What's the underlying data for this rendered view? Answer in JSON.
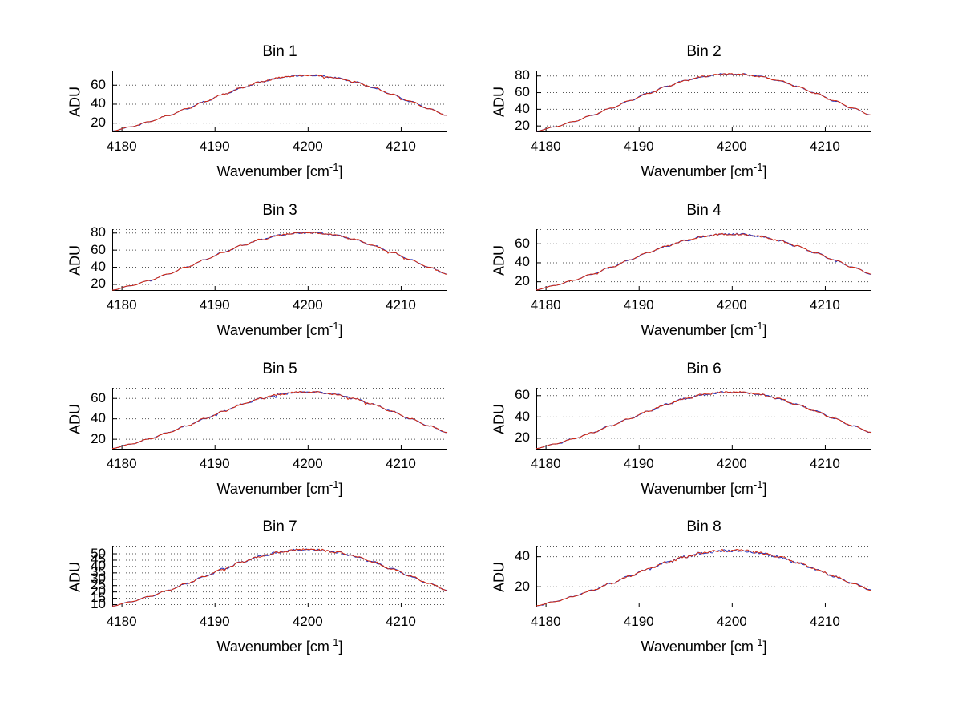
{
  "figure": {
    "background": "#ffffff",
    "ylabel": "ADU",
    "xlabel": {
      "prefix": "Wavenumber [cm",
      "sup": "-1",
      "suffix": "]"
    },
    "line_color": "#d42a10",
    "under_line_color": "#1c2fbf",
    "grid_color": "#555555",
    "axis_color": "#000000"
  },
  "chart_data": [
    {
      "type": "line",
      "title": "Bin 1",
      "x": [
        4179,
        4181,
        4183,
        4185,
        4187,
        4189,
        4191,
        4193,
        4195,
        4197,
        4199,
        4201,
        4203,
        4205,
        4207,
        4209,
        4211,
        4213,
        4215
      ],
      "values": [
        11.3,
        15.7,
        21.2,
        27.6,
        34.8,
        42.5,
        50.1,
        57.2,
        63.1,
        67.4,
        69.7,
        69.7,
        67.4,
        63.1,
        57.2,
        50.1,
        42.5,
        34.8,
        27.6
      ],
      "peak": 70,
      "xticks": [
        4180,
        4190,
        4200,
        4210
      ],
      "yticks": [
        20,
        40,
        60
      ],
      "xlim": [
        4179,
        4215
      ],
      "ylim": [
        10,
        75
      ],
      "xlabel": "Wavenumber [cm-1]",
      "ylabel": "ADU",
      "grid": true
    },
    {
      "type": "line",
      "title": "Bin 2",
      "x": [
        4179,
        4181,
        4183,
        4185,
        4187,
        4189,
        4191,
        4193,
        4195,
        4197,
        4199,
        4201,
        4203,
        4205,
        4207,
        4209,
        4211,
        4213,
        4215
      ],
      "values": [
        13.3,
        18.4,
        24.8,
        32.4,
        40.8,
        49.7,
        58.7,
        67.0,
        74.0,
        79.0,
        81.7,
        81.7,
        79.0,
        74.0,
        67.0,
        58.7,
        49.7,
        40.8,
        32.4
      ],
      "peak": 82,
      "xticks": [
        4180,
        4190,
        4200,
        4210
      ],
      "yticks": [
        20,
        40,
        60,
        80
      ],
      "xlim": [
        4179,
        4215
      ],
      "ylim": [
        12,
        86
      ],
      "xlabel": "Wavenumber [cm-1]",
      "ylabel": "ADU",
      "grid": true
    },
    {
      "type": "line",
      "title": "Bin 3",
      "x": [
        4179,
        4181,
        4183,
        4185,
        4187,
        4189,
        4191,
        4193,
        4195,
        4197,
        4199,
        4201,
        4203,
        4205,
        4207,
        4209,
        4211,
        4213,
        4215
      ],
      "values": [
        12.9,
        18.0,
        24.2,
        31.6,
        39.8,
        48.5,
        57.2,
        65.3,
        72.1,
        77.1,
        79.7,
        79.7,
        77.1,
        72.1,
        65.3,
        57.2,
        48.5,
        39.8,
        31.6
      ],
      "peak": 80,
      "xticks": [
        4180,
        4190,
        4200,
        4210
      ],
      "yticks": [
        20,
        40,
        60,
        80
      ],
      "xlim": [
        4179,
        4215
      ],
      "ylim": [
        12,
        84
      ],
      "xlabel": "Wavenumber [cm-1]",
      "ylabel": "ADU",
      "grid": true
    },
    {
      "type": "line",
      "title": "Bin 4",
      "x": [
        4179,
        4181,
        4183,
        4185,
        4187,
        4189,
        4191,
        4193,
        4195,
        4197,
        4199,
        4201,
        4203,
        4205,
        4207,
        4209,
        4211,
        4213,
        4215
      ],
      "values": [
        11.3,
        15.7,
        21.2,
        27.6,
        34.8,
        42.5,
        50.1,
        57.2,
        63.1,
        67.4,
        69.7,
        69.7,
        67.4,
        63.1,
        57.2,
        50.1,
        42.5,
        34.8,
        27.6
      ],
      "peak": 70,
      "xticks": [
        4180,
        4190,
        4200,
        4210
      ],
      "yticks": [
        20,
        40,
        60
      ],
      "xlim": [
        4179,
        4215
      ],
      "ylim": [
        10,
        75
      ],
      "xlabel": "Wavenumber [cm-1]",
      "ylabel": "ADU",
      "grid": true
    },
    {
      "type": "line",
      "title": "Bin 5",
      "x": [
        4179,
        4181,
        4183,
        4185,
        4187,
        4189,
        4191,
        4193,
        4195,
        4197,
        4199,
        4201,
        4203,
        4205,
        4207,
        4209,
        4211,
        4213,
        4215
      ],
      "values": [
        10.7,
        14.8,
        20.0,
        26.1,
        32.8,
        40.0,
        47.2,
        53.9,
        59.5,
        63.6,
        65.7,
        65.7,
        63.6,
        59.5,
        53.9,
        47.2,
        40.0,
        32.8,
        26.1
      ],
      "peak": 66,
      "xticks": [
        4180,
        4190,
        4200,
        4210
      ],
      "yticks": [
        20,
        40,
        60
      ],
      "xlim": [
        4179,
        4215
      ],
      "ylim": [
        9.5,
        70
      ],
      "xlabel": "Wavenumber [cm-1]",
      "ylabel": "ADU",
      "grid": true
    },
    {
      "type": "line",
      "title": "Bin 6",
      "x": [
        4179,
        4181,
        4183,
        4185,
        4187,
        4189,
        4191,
        4193,
        4195,
        4197,
        4199,
        4201,
        4203,
        4205,
        4207,
        4209,
        4211,
        4213,
        4215
      ],
      "values": [
        10.2,
        14.2,
        19.1,
        24.9,
        31.3,
        38.2,
        45.1,
        51.5,
        56.8,
        60.7,
        62.7,
        62.7,
        60.7,
        56.8,
        51.5,
        45.1,
        38.2,
        31.3,
        24.9
      ],
      "peak": 63,
      "xticks": [
        4180,
        4190,
        4200,
        4210
      ],
      "yticks": [
        20,
        40,
        60
      ],
      "xlim": [
        4179,
        4215
      ],
      "ylim": [
        9,
        67
      ],
      "xlabel": "Wavenumber [cm-1]",
      "ylabel": "ADU",
      "grid": true
    },
    {
      "type": "line",
      "title": "Bin 7",
      "x": [
        4179,
        4181,
        4183,
        4185,
        4187,
        4189,
        4191,
        4193,
        4195,
        4197,
        4199,
        4201,
        4203,
        4205,
        4207,
        4209,
        4211,
        4213,
        4215
      ],
      "values": [
        8.6,
        11.9,
        16.1,
        20.9,
        26.4,
        32.1,
        37.9,
        43.3,
        47.8,
        51.1,
        52.8,
        52.8,
        51.1,
        47.8,
        43.3,
        37.9,
        32.1,
        26.4,
        20.9
      ],
      "peak": 53,
      "xticks": [
        4180,
        4190,
        4200,
        4210
      ],
      "yticks": [
        10,
        15,
        20,
        25,
        30,
        35,
        40,
        45,
        50
      ],
      "xlim": [
        4179,
        4215
      ],
      "ylim": [
        7.5,
        56
      ],
      "xlabel": "Wavenumber [cm-1]",
      "ylabel": "ADU",
      "grid": true
    },
    {
      "type": "line",
      "title": "Bin 8",
      "x": [
        4179,
        4181,
        4183,
        4185,
        4187,
        4189,
        4191,
        4193,
        4195,
        4197,
        4199,
        4201,
        4203,
        4205,
        4207,
        4209,
        4211,
        4213,
        4215
      ],
      "values": [
        7.1,
        9.9,
        13.3,
        17.4,
        21.9,
        26.7,
        31.5,
        35.9,
        39.7,
        42.4,
        43.8,
        43.8,
        42.4,
        39.7,
        35.9,
        31.5,
        26.7,
        21.9,
        17.4
      ],
      "peak": 44,
      "xticks": [
        4180,
        4190,
        4200,
        4210
      ],
      "yticks": [
        20,
        40
      ],
      "xlim": [
        4179,
        4215
      ],
      "ylim": [
        6,
        47
      ],
      "xlabel": "Wavenumber [cm-1]",
      "ylabel": "ADU",
      "grid": true
    }
  ]
}
